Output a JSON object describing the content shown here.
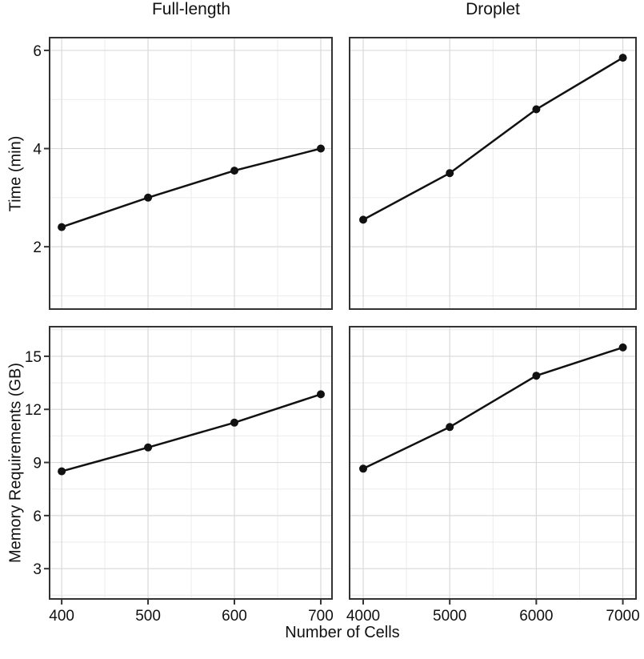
{
  "figure": {
    "colors": {
      "background": "#ffffff",
      "text": "#111111",
      "line": "#111111",
      "point": "#111111",
      "panel_border": "#333333",
      "tick_mark": "#333333",
      "grid_major": "#d9d9d9",
      "grid_minor": "#ebebeb"
    }
  },
  "chart_data": [
    {
      "name": "time-full-length",
      "type": "line",
      "facet_col": "Full-length",
      "facet_row": "Time (min)",
      "ylabel": "Time (min)",
      "xlabel": "",
      "x": [
        400,
        500,
        600,
        700
      ],
      "y": [
        2.4,
        3.0,
        3.55,
        4.0
      ],
      "xlim": [
        386,
        713
      ],
      "ylim": [
        0.73,
        6.26
      ],
      "x_major_ticks": [
        400,
        500,
        600,
        700
      ],
      "x_minor_ticks": [
        450,
        550,
        650
      ],
      "y_major_ticks": [
        2,
        4,
        6
      ],
      "y_minor_ticks": [
        1,
        3,
        5
      ],
      "x_tick_labels": [
        "400",
        "500",
        "600",
        "700"
      ],
      "y_tick_labels": [
        "2",
        "4",
        "6"
      ],
      "show_x_tick_labels": false,
      "show_y_tick_labels": true,
      "grid": true,
      "legend": "none"
    },
    {
      "name": "time-droplet",
      "type": "line",
      "facet_col": "Droplet",
      "facet_row": "Time (min)",
      "ylabel": "Time (min)",
      "xlabel": "",
      "x": [
        4000,
        5000,
        6000,
        7000
      ],
      "y": [
        2.55,
        3.5,
        4.8,
        5.85
      ],
      "xlim": [
        3843,
        7152
      ],
      "ylim": [
        0.73,
        6.26
      ],
      "x_major_ticks": [
        4000,
        5000,
        6000,
        7000
      ],
      "x_minor_ticks": [
        4500,
        5500,
        6500
      ],
      "y_major_ticks": [
        2,
        4,
        6
      ],
      "y_minor_ticks": [
        1,
        3,
        5
      ],
      "x_tick_labels": [
        "4000",
        "5000",
        "6000",
        "7000"
      ],
      "y_tick_labels": [
        "2",
        "4",
        "6"
      ],
      "show_x_tick_labels": false,
      "show_y_tick_labels": false,
      "grid": true,
      "legend": "none"
    },
    {
      "name": "memory-full-length",
      "type": "line",
      "facet_col": "Full-length",
      "facet_row": "Memory Requirements (GB)",
      "ylabel": "Memory Requirements (GB)",
      "xlabel": "Number of Cells",
      "x": [
        400,
        500,
        600,
        700
      ],
      "y": [
        8.5,
        9.85,
        11.25,
        12.85
      ],
      "xlim": [
        386,
        713
      ],
      "ylim": [
        1.29,
        16.67
      ],
      "x_major_ticks": [
        400,
        500,
        600,
        700
      ],
      "x_minor_ticks": [
        450,
        550,
        650
      ],
      "y_major_ticks": [
        3,
        6,
        9,
        12,
        15
      ],
      "y_minor_ticks": [
        1.5,
        4.5,
        7.5,
        10.5,
        13.5,
        16.5
      ],
      "x_tick_labels": [
        "400",
        "500",
        "600",
        "700"
      ],
      "y_tick_labels": [
        "3",
        "6",
        "9",
        "12",
        "15"
      ],
      "show_x_tick_labels": true,
      "show_y_tick_labels": true,
      "grid": true,
      "legend": "none"
    },
    {
      "name": "memory-droplet",
      "type": "line",
      "facet_col": "Droplet",
      "facet_row": "Memory Requirements (GB)",
      "ylabel": "Memory Requirements (GB)",
      "xlabel": "Number of Cells",
      "x": [
        4000,
        5000,
        6000,
        7000
      ],
      "y": [
        8.65,
        11.0,
        13.9,
        15.5
      ],
      "xlim": [
        3843,
        7152
      ],
      "ylim": [
        1.29,
        16.67
      ],
      "x_major_ticks": [
        4000,
        5000,
        6000,
        7000
      ],
      "x_minor_ticks": [
        4500,
        5500,
        6500
      ],
      "y_major_ticks": [
        3,
        6,
        9,
        12,
        15
      ],
      "y_minor_ticks": [
        1.5,
        4.5,
        7.5,
        10.5,
        13.5,
        16.5
      ],
      "x_tick_labels": [
        "4000",
        "5000",
        "6000",
        "7000"
      ],
      "y_tick_labels": [
        "3",
        "6",
        "9",
        "12",
        "15"
      ],
      "show_x_tick_labels": true,
      "show_y_tick_labels": false,
      "grid": true,
      "legend": "none"
    }
  ]
}
